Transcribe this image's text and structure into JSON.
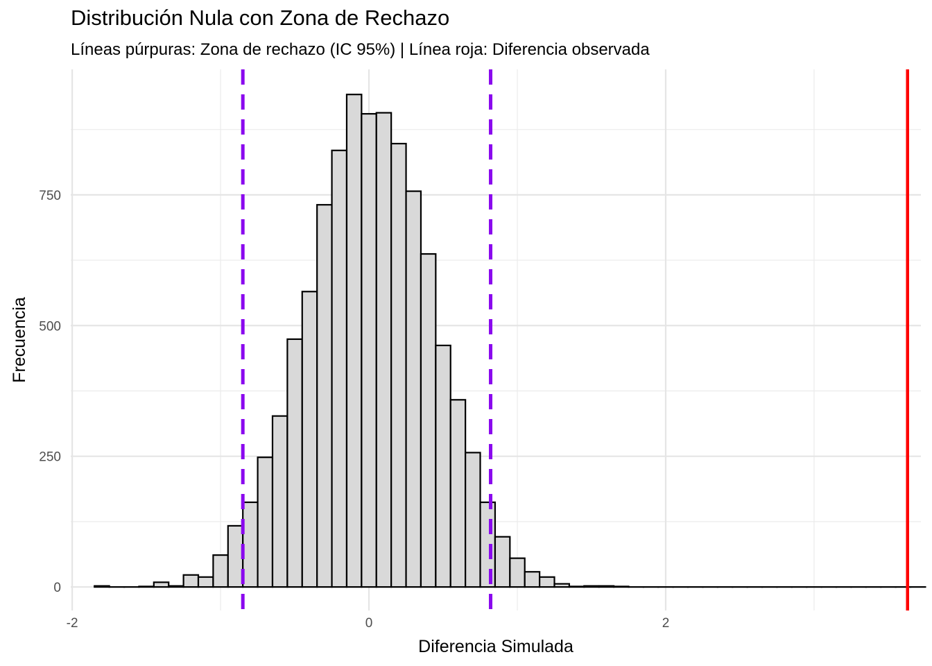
{
  "title": "Distribución Nula con Zona de Rechazo",
  "subtitle": "Líneas púrpuras: Zona de rechazo (IC 95%) | Línea roja: Diferencia observada",
  "chart_data": {
    "type": "bar",
    "subtype": "histogram",
    "xlabel": "Diferencia Simulada",
    "ylabel": "Frecuencia",
    "xlim": [
      -2.01,
      3.72
    ],
    "ylim": [
      -45,
      990
    ],
    "x_ticks": [
      -2,
      0,
      2
    ],
    "x_tick_labels": [
      "-2",
      "0",
      "2"
    ],
    "y_ticks": [
      0,
      250,
      500,
      750
    ],
    "y_tick_labels": [
      "0",
      "250",
      "500",
      "750"
    ],
    "grid": true,
    "bin_width": 0.1,
    "bin_start": -1.85,
    "counts": [
      2,
      0,
      0,
      1,
      9,
      2,
      23,
      19,
      61,
      117,
      162,
      248,
      327,
      474,
      565,
      731,
      835,
      942,
      905,
      907,
      848,
      757,
      637,
      462,
      358,
      257,
      162,
      96,
      55,
      29,
      19,
      6,
      1,
      2,
      2,
      1,
      0,
      0,
      0,
      0,
      0,
      0,
      0,
      0,
      0,
      0,
      0,
      0,
      0,
      0,
      0,
      0,
      0,
      0,
      0,
      0
    ],
    "bar_fill": "#d9d9d9",
    "bar_stroke": "#000000",
    "reference_lines": [
      {
        "x": -0.85,
        "color": "#8a08ee",
        "style": "dashed"
      },
      {
        "x": 0.82,
        "color": "#8a08ee",
        "style": "dashed"
      },
      {
        "x": 3.63,
        "color": "#ff0000",
        "style": "solid"
      }
    ]
  }
}
